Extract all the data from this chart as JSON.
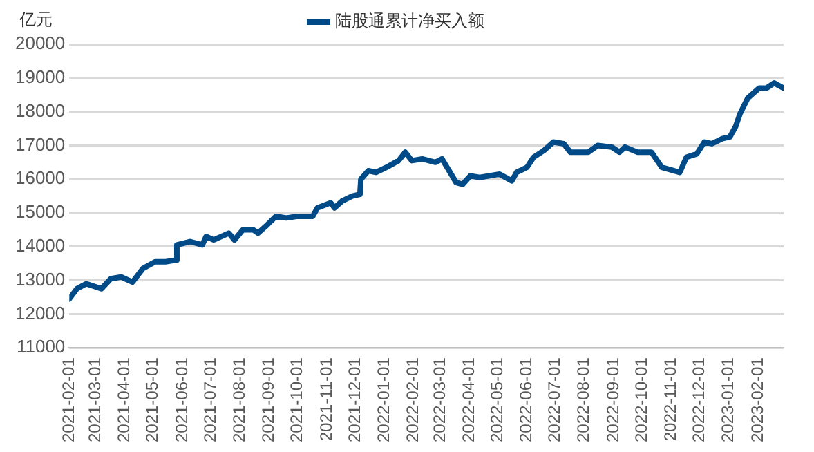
{
  "chart_data": {
    "type": "line",
    "ylabel": "亿元",
    "legend": "top",
    "grid": "y",
    "marker": "none",
    "line_style": "solid",
    "ylim": [
      11000,
      20000
    ],
    "yticks": [
      11000,
      12000,
      13000,
      14000,
      15000,
      16000,
      17000,
      18000,
      19000,
      20000
    ],
    "xlim": [
      "2021-02-01",
      "2023-02-28"
    ],
    "xticks": [
      "2021-02-01",
      "2021-03-01",
      "2021-04-01",
      "2021-05-01",
      "2021-06-01",
      "2021-07-01",
      "2021-08-01",
      "2021-09-01",
      "2021-10-01",
      "2021-11-01",
      "2021-12-01",
      "2022-01-01",
      "2022-02-01",
      "2022-03-01",
      "2022-04-01",
      "2022-05-01",
      "2022-06-01",
      "2022-07-01",
      "2022-08-01",
      "2022-09-01",
      "2022-10-01",
      "2022-11-01",
      "2022-12-01",
      "2023-01-01",
      "2023-02-01"
    ],
    "series": [
      {
        "name": "陆股通累计净买入额",
        "color": "#004b87",
        "x": [
          "2021-02-01",
          "2021-02-09",
          "2021-02-19",
          "2021-03-07",
          "2021-03-17",
          "2021-03-28",
          "2021-04-09",
          "2021-04-20",
          "2021-05-03",
          "2021-05-14",
          "2021-05-25",
          "2021-05-26",
          "2021-06-09",
          "2021-06-22",
          "2021-06-26",
          "2021-07-04",
          "2021-07-20",
          "2021-07-26",
          "2021-08-04",
          "2021-08-15",
          "2021-08-20",
          "2021-08-28",
          "2021-09-08",
          "2021-09-19",
          "2021-10-01",
          "2021-10-17",
          "2021-10-22",
          "2021-11-05",
          "2021-11-09",
          "2021-11-17",
          "2021-11-28",
          "2021-12-06",
          "2021-12-07",
          "2021-12-15",
          "2021-12-23",
          "2022-01-03",
          "2022-01-16",
          "2022-01-23",
          "2022-01-30",
          "2022-02-10",
          "2022-02-24",
          "2022-03-03",
          "2022-03-18",
          "2022-03-25",
          "2022-04-02",
          "2022-04-12",
          "2022-05-03",
          "2022-05-16",
          "2022-05-21",
          "2022-06-01",
          "2022-06-08",
          "2022-06-19",
          "2022-06-29",
          "2022-07-10",
          "2022-07-17",
          "2022-08-05",
          "2022-08-15",
          "2022-08-30",
          "2022-09-07",
          "2022-09-13",
          "2022-09-26",
          "2022-10-11",
          "2022-10-22",
          "2022-11-10",
          "2022-11-17",
          "2022-11-28",
          "2022-12-06",
          "2022-12-14",
          "2022-12-25",
          "2023-01-02",
          "2023-01-08",
          "2023-01-13",
          "2023-01-21",
          "2023-02-02",
          "2023-02-10",
          "2023-02-18",
          "2023-02-28"
        ],
        "values": [
          12450,
          12750,
          12900,
          12750,
          13050,
          13100,
          12950,
          13350,
          13550,
          13550,
          13600,
          14050,
          14150,
          14050,
          14300,
          14200,
          14400,
          14200,
          14500,
          14500,
          14400,
          14600,
          14900,
          14850,
          14900,
          14900,
          15150,
          15300,
          15150,
          15350,
          15500,
          15550,
          16000,
          16250,
          16200,
          16350,
          16550,
          16800,
          16550,
          16600,
          16500,
          16600,
          15900,
          15850,
          16100,
          16050,
          16150,
          15950,
          16200,
          16350,
          16650,
          16850,
          17100,
          17050,
          16800,
          16800,
          17000,
          16950,
          16800,
          16950,
          16800,
          16800,
          16350,
          16200,
          16650,
          16750,
          17100,
          17050,
          17200,
          17250,
          17550,
          17950,
          18400,
          18700,
          18700,
          18850,
          18700
        ]
      }
    ]
  }
}
